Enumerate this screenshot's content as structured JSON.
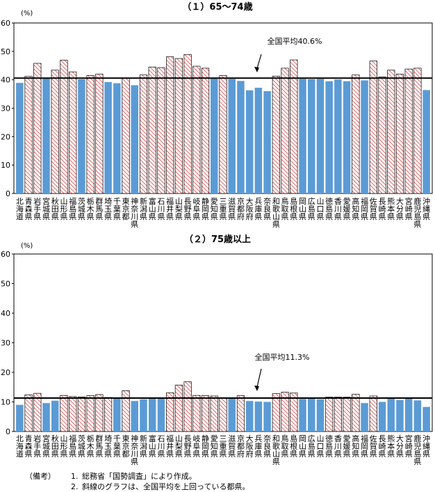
{
  "notes": {
    "label": "（備考）",
    "items": [
      {
        "num": "1.",
        "text": "総務省「国勢調査」により作成。"
      },
      {
        "num": "2.",
        "text": "斜線のグラフは、全国平均を上回っている都県。"
      }
    ]
  },
  "prefectures": [
    "北海道",
    "青森県",
    "岩手県",
    "宮城県",
    "秋田県",
    "山形県",
    "福島県",
    "茨城県",
    "栃木県",
    "群馬県",
    "埼玉県",
    "千葉県",
    "東京都",
    "神奈川県",
    "新潟県",
    "富山県",
    "石川県",
    "福井県",
    "山梨県",
    "長野県",
    "岐阜県",
    "静岡県",
    "愛知県",
    "三重県",
    "滋賀県",
    "京都府",
    "大阪府",
    "兵庫県",
    "奈良県",
    "和歌山県",
    "鳥取県",
    "島根県",
    "岡山県",
    "広島県",
    "山口県",
    "徳島県",
    "香川県",
    "愛媛県",
    "高知県",
    "福岡県",
    "佐賀県",
    "長崎県",
    "熊本県",
    "大分県",
    "宮崎県",
    "鹿児島県",
    "沖縄県"
  ],
  "colors": {
    "below": "#5b9bd5",
    "above_stripe": "#e06666",
    "average_line": "#000000"
  },
  "chart_data": [
    {
      "type": "bar",
      "title": "（１）65～74歳",
      "ylabel": "(%)",
      "ylim": [
        0,
        60
      ],
      "yticks": [
        "0",
        "10",
        "20",
        "30",
        "40",
        "50",
        "60"
      ],
      "average": 40.6,
      "average_label": "全国平均40.6%",
      "values": [
        38.9,
        41.2,
        45.8,
        40.4,
        43.4,
        46.9,
        42.8,
        40.2,
        41.5,
        42.0,
        39.2,
        38.8,
        40.7,
        38.1,
        41.7,
        44.5,
        44.3,
        48.1,
        47.5,
        48.9,
        44.8,
        44.1,
        40.4,
        41.5,
        40.3,
        39.6,
        36.3,
        37.2,
        36.0,
        41.3,
        44.1,
        47.0,
        40.3,
        40.2,
        40.3,
        39.5,
        40.1,
        39.5,
        41.7,
        39.8,
        46.6,
        41.0,
        43.4,
        42.0,
        43.8,
        44.1,
        36.4
      ]
    },
    {
      "type": "bar",
      "title": "（２）75歳以上",
      "ylabel": "(%)",
      "ylim": [
        0,
        60
      ],
      "yticks": [
        "0",
        "10",
        "20",
        "30",
        "40",
        "50",
        "60"
      ],
      "average": 11.3,
      "average_label": "全国平均11.3%",
      "values": [
        9.0,
        12.4,
        12.9,
        9.6,
        10.4,
        12.2,
        11.8,
        11.7,
        12.1,
        12.5,
        11.5,
        11.3,
        13.8,
        10.3,
        10.9,
        11.3,
        11.3,
        13.1,
        15.7,
        16.8,
        12.2,
        12.1,
        12.0,
        11.4,
        11.3,
        12.1,
        10.3,
        10.1,
        10.0,
        12.8,
        13.3,
        13.0,
        11.0,
        11.2,
        10.9,
        11.6,
        11.6,
        11.6,
        12.6,
        9.6,
        12.0,
        10.0,
        11.1,
        10.6,
        11.1,
        10.5,
        8.3
      ]
    }
  ]
}
